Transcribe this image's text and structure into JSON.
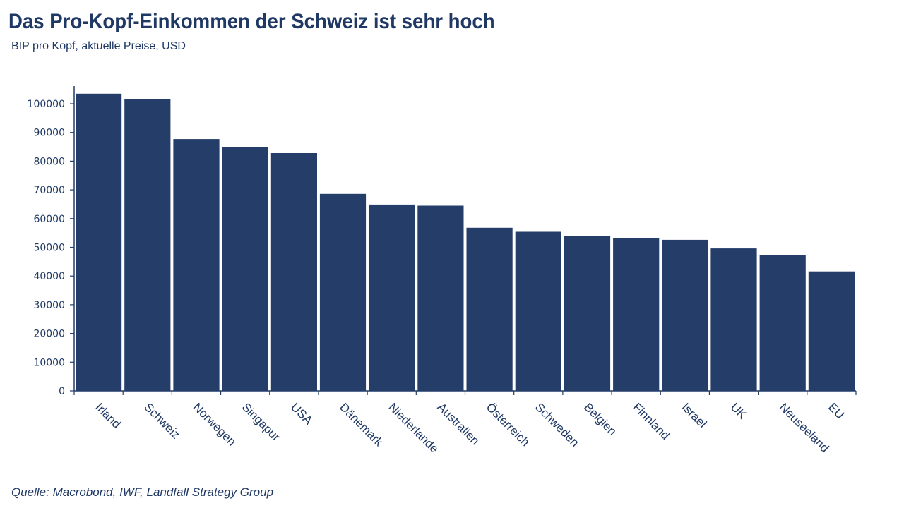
{
  "title": "Das Pro-Kopf-Einkommen der Schweiz ist sehr hoch",
  "subtitle": "BIP pro Kopf, aktuelle Preise, USD",
  "source": "Quelle: Macrobond, IWF, Landfall Strategy Group",
  "colors": {
    "bar": "#253d69",
    "axis": "#253d69",
    "text": "#1f3864"
  },
  "chart_data": {
    "type": "bar",
    "title": "Das Pro-Kopf-Einkommen der Schweiz ist sehr hoch",
    "subtitle": "BIP pro Kopf, aktuelle Preise, USD",
    "xlabel": "",
    "ylabel": "",
    "ylim": [
      0,
      100000
    ],
    "ytick_step": 10000,
    "grid": false,
    "legend": "none",
    "categories": [
      "Irland",
      "Schweiz",
      "Norwegen",
      "Singapur",
      "USA",
      "Dänemark",
      "Niederlande",
      "Australien",
      "Österreich",
      "Schweden",
      "Belgien",
      "Finnland",
      "Israel",
      "UK",
      "Neuseeland",
      "EU"
    ],
    "values": [
      103500,
      101500,
      87700,
      84800,
      82800,
      68600,
      64900,
      64500,
      56800,
      55400,
      53800,
      53200,
      52600,
      49600,
      47400,
      41600
    ]
  }
}
